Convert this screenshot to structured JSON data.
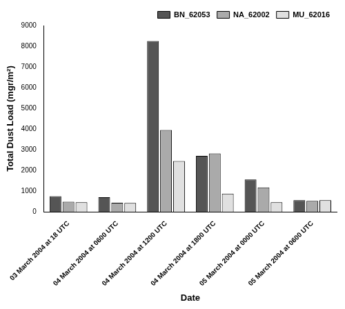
{
  "chart_data": {
    "type": "bar",
    "x_label": "Date",
    "y_label": "Total Dust Load (mgr/m²)",
    "categories": [
      "03 March 2004 at 18 UTC",
      "04 March 2004 at 0600 UTC",
      "04 March 2004 at 1200 UTC",
      "04 March 2004 at 1800 UTC",
      "05 March 2004 at 0000 UTC",
      "05 March 2004 at 0600 UTC"
    ],
    "series": [
      {
        "name": "BN_62053",
        "color": "#555555",
        "values": [
          750,
          700,
          8250,
          2700,
          1560,
          560
        ]
      },
      {
        "name": "NA_62002",
        "color": "#aaaaaa",
        "values": [
          490,
          440,
          3950,
          2820,
          1180,
          530
        ]
      },
      {
        "name": "MU_62016",
        "color": "#e0e0e0",
        "values": [
          460,
          430,
          2450,
          880,
          460,
          560
        ]
      }
    ],
    "ylim": [
      0,
      9000
    ],
    "yticks": [
      0,
      1000,
      2000,
      3000,
      4000,
      5000,
      6000,
      7000,
      8000,
      9000
    ],
    "grid": false,
    "legend": "upper right"
  }
}
